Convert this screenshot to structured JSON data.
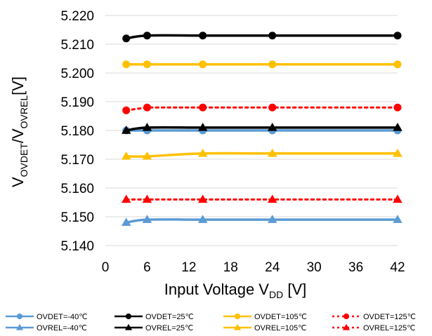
{
  "chart_data": {
    "type": "line",
    "title": "",
    "xlabel": {
      "main": "Input Voltage V",
      "sub": "DD",
      "unit": " [V]"
    },
    "ylabel": {
      "v1": "V",
      "sub1": "OVDET",
      "slash": "/V",
      "sub2": "OVREL",
      "unit": "[V]"
    },
    "xlim": [
      0,
      42
    ],
    "ylim": [
      5.14,
      5.22
    ],
    "xticks": [
      "0",
      "6",
      "12",
      "18",
      "24",
      "30",
      "36",
      "42"
    ],
    "yticks": [
      "5.140",
      "5.150",
      "5.160",
      "5.170",
      "5.180",
      "5.190",
      "5.200",
      "5.210",
      "5.220"
    ],
    "grid": {
      "x": false,
      "y": true
    },
    "legend_position": "bottom",
    "series": [
      {
        "name": "OVDET=-40℃",
        "color": "#5b9bd5",
        "marker": "circle",
        "dash": false,
        "points": [
          [
            3,
            5.18
          ],
          [
            6,
            5.18
          ],
          [
            14,
            5.18
          ],
          [
            24,
            5.18
          ],
          [
            42,
            5.18
          ]
        ]
      },
      {
        "name": "OVDET=25℃",
        "color": "#000000",
        "marker": "circle",
        "dash": false,
        "points": [
          [
            3,
            5.212
          ],
          [
            6,
            5.213
          ],
          [
            14,
            5.213
          ],
          [
            24,
            5.213
          ],
          [
            42,
            5.213
          ]
        ]
      },
      {
        "name": "OVDET=105℃",
        "color": "#ffc000",
        "marker": "circle",
        "dash": false,
        "points": [
          [
            3,
            5.203
          ],
          [
            6,
            5.203
          ],
          [
            14,
            5.203
          ],
          [
            24,
            5.203
          ],
          [
            42,
            5.203
          ]
        ]
      },
      {
        "name": "OVDET=125℃",
        "color": "#ff0000",
        "marker": "circle",
        "dash": true,
        "points": [
          [
            3,
            5.187
          ],
          [
            6,
            5.188
          ],
          [
            14,
            5.188
          ],
          [
            24,
            5.188
          ],
          [
            42,
            5.188
          ]
        ]
      },
      {
        "name": "OVREL=-40℃",
        "color": "#5b9bd5",
        "marker": "triangle",
        "dash": false,
        "points": [
          [
            3,
            5.148
          ],
          [
            6,
            5.149
          ],
          [
            14,
            5.149
          ],
          [
            24,
            5.149
          ],
          [
            42,
            5.149
          ]
        ]
      },
      {
        "name": "OVREL=25℃",
        "color": "#000000",
        "marker": "triangle",
        "dash": false,
        "points": [
          [
            3,
            5.18
          ],
          [
            6,
            5.181
          ],
          [
            14,
            5.181
          ],
          [
            24,
            5.181
          ],
          [
            42,
            5.181
          ]
        ]
      },
      {
        "name": "OVREL=105℃",
        "color": "#ffc000",
        "marker": "triangle",
        "dash": false,
        "points": [
          [
            3,
            5.171
          ],
          [
            6,
            5.171
          ],
          [
            14,
            5.172
          ],
          [
            24,
            5.172
          ],
          [
            42,
            5.172
          ]
        ]
      },
      {
        "name": "OVREL=125℃",
        "color": "#ff0000",
        "marker": "triangle",
        "dash": true,
        "points": [
          [
            3,
            5.156
          ],
          [
            6,
            5.156
          ],
          [
            14,
            5.156
          ],
          [
            24,
            5.156
          ],
          [
            42,
            5.156
          ]
        ]
      }
    ]
  }
}
